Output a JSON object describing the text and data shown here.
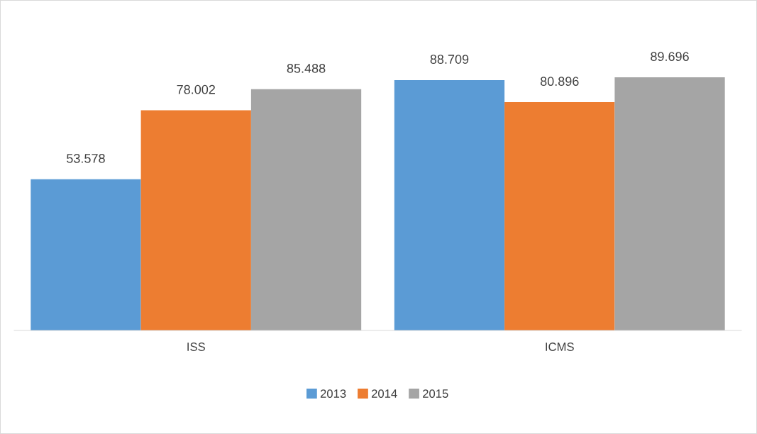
{
  "chart_data": {
    "type": "bar",
    "categories": [
      "ISS",
      "ICMS"
    ],
    "series": [
      {
        "name": "2013",
        "color": "#5b9bd5",
        "values": [
          53.578,
          88.709
        ]
      },
      {
        "name": "2014",
        "color": "#ed7d31",
        "values": [
          78.002,
          80.896
        ]
      },
      {
        "name": "2015",
        "color": "#a5a5a5",
        "values": [
          85.488,
          89.696
        ]
      }
    ],
    "data_labels": true,
    "legend": "bottom"
  }
}
